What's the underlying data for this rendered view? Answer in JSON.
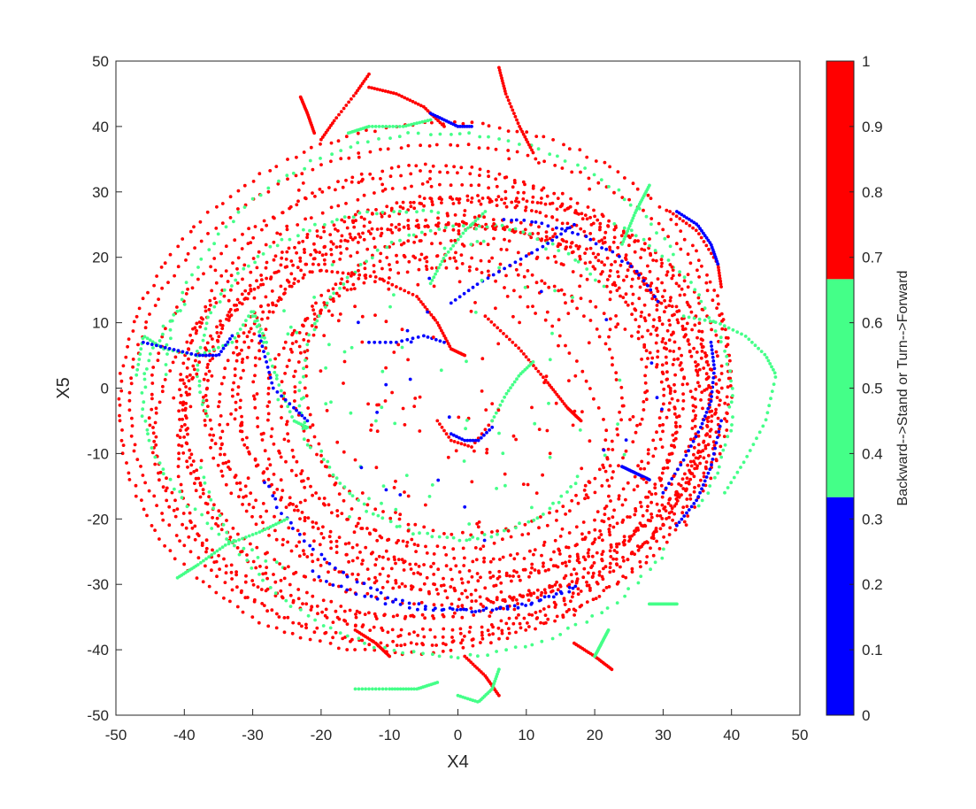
{
  "chart_data": {
    "type": "scatter",
    "title": "",
    "xlabel": "X4",
    "ylabel": "X5",
    "xlim": [
      -50,
      50
    ],
    "ylim": [
      -50,
      50
    ],
    "xticks": [
      -50,
      -40,
      -30,
      -20,
      -10,
      0,
      10,
      20,
      30,
      40,
      50
    ],
    "yticks": [
      -50,
      -40,
      -30,
      -20,
      -10,
      0,
      10,
      20,
      30,
      40,
      50
    ],
    "grid": false,
    "colorbar": {
      "label": "Backward-->Stand or Turn-->Forward",
      "lim": [
        0,
        1
      ],
      "ticks": [
        0,
        0.1,
        0.2,
        0.3,
        0.4,
        0.5,
        0.6,
        0.7,
        0.8,
        0.9,
        1
      ],
      "colormap": [
        {
          "from": 0,
          "to": 0.3333,
          "color": "#0000ff"
        },
        {
          "from": 0.3333,
          "to": 0.6667,
          "color": "#44ff88"
        },
        {
          "from": 0.6667,
          "to": 1,
          "color": "#ff0000"
        }
      ]
    },
    "classes": [
      {
        "value": 0,
        "color": "#0000ff"
      },
      {
        "value": 0.5,
        "color": "#44ff88"
      },
      {
        "value": 1,
        "color": "#ff0000"
      }
    ],
    "series": [
      {
        "value": 1,
        "kind": "ellipse",
        "cx": -4,
        "cy": -1,
        "rx": 44,
        "ry": 38,
        "tilt": 8,
        "start": 0,
        "end": 360,
        "n": 190
      },
      {
        "value": 1,
        "kind": "ellipse",
        "cx": -4,
        "cy": -2,
        "rx": 41,
        "ry": 35,
        "tilt": 5,
        "start": 0,
        "end": 360,
        "n": 180
      },
      {
        "value": 1,
        "kind": "ellipse",
        "cx": -3,
        "cy": -2,
        "rx": 38,
        "ry": 33,
        "tilt": 10,
        "start": 0,
        "end": 360,
        "n": 170
      },
      {
        "value": 1,
        "kind": "ellipse",
        "cx": -2,
        "cy": -1,
        "rx": 35,
        "ry": 30,
        "tilt": 6,
        "start": 0,
        "end": 360,
        "n": 160
      },
      {
        "value": 1,
        "kind": "ellipse",
        "cx": -2,
        "cy": -2,
        "rx": 33,
        "ry": 28,
        "tilt": 12,
        "start": 0,
        "end": 360,
        "n": 150
      },
      {
        "value": 1,
        "kind": "ellipse",
        "cx": -1,
        "cy": -1,
        "rx": 31,
        "ry": 26,
        "tilt": 4,
        "start": 0,
        "end": 360,
        "n": 140
      },
      {
        "value": 1,
        "kind": "ellipse",
        "cx": -3,
        "cy": -3,
        "rx": 42,
        "ry": 31,
        "tilt": 15,
        "start": 0,
        "end": 360,
        "n": 180
      },
      {
        "value": 1,
        "kind": "ellipse",
        "cx": 0,
        "cy": -2,
        "rx": 37,
        "ry": 27,
        "tilt": -5,
        "start": 0,
        "end": 360,
        "n": 160
      },
      {
        "value": 1,
        "kind": "ellipse",
        "cx": 1,
        "cy": -3,
        "rx": 34,
        "ry": 25,
        "tilt": -10,
        "start": 0,
        "end": 360,
        "n": 150
      },
      {
        "value": 1,
        "kind": "ellipse",
        "cx": 2,
        "cy": -4,
        "rx": 30,
        "ry": 22,
        "tilt": -8,
        "start": 0,
        "end": 360,
        "n": 130
      },
      {
        "value": 1,
        "kind": "ellipse",
        "cx": -5,
        "cy": 0,
        "rx": 45,
        "ry": 40,
        "tilt": 18,
        "start": 0,
        "end": 360,
        "n": 200
      },
      {
        "value": 1,
        "kind": "ellipse",
        "cx": -1,
        "cy": -4,
        "rx": 39,
        "ry": 29,
        "tilt": 2,
        "start": 0,
        "end": 360,
        "n": 170
      },
      {
        "value": 1,
        "kind": "ellipse",
        "cx": 1,
        "cy": 0,
        "rx": 27,
        "ry": 24,
        "tilt": 20,
        "start": 0,
        "end": 360,
        "n": 120
      },
      {
        "value": 1,
        "kind": "ellipse",
        "cx": 0,
        "cy": -1,
        "rx": 24,
        "ry": 21,
        "tilt": -15,
        "start": 0,
        "end": 360,
        "n": 110
      },
      {
        "value": 1,
        "kind": "ellipse",
        "cx": -4,
        "cy": -2,
        "rx": 36,
        "ry": 36,
        "tilt": 0,
        "start": 0,
        "end": 360,
        "n": 170
      },
      {
        "value": 1,
        "kind": "ellipse",
        "cx": -2,
        "cy": -5,
        "rx": 40,
        "ry": 33,
        "tilt": 25,
        "start": 0,
        "end": 360,
        "n": 175
      },
      {
        "value": 1,
        "kind": "ellipse",
        "cx": 0,
        "cy": -6,
        "rx": 20,
        "ry": 28,
        "tilt": 30,
        "start": 0,
        "end": 360,
        "n": 110
      },
      {
        "value": 1,
        "kind": "ellipse",
        "cx": 3,
        "cy": -2,
        "rx": 33,
        "ry": 30,
        "tilt": -20,
        "start": 0,
        "end": 360,
        "n": 150
      },
      {
        "value": 0.5,
        "kind": "ellipse",
        "cx": -3,
        "cy": 1,
        "rx": 40,
        "ry": 38,
        "tilt": 10,
        "start": 20,
        "end": 170,
        "n": 70
      },
      {
        "value": 0.5,
        "kind": "ellipse",
        "cx": -1,
        "cy": -6,
        "rx": 37,
        "ry": 35,
        "tilt": 0,
        "start": 190,
        "end": 330,
        "n": 65
      },
      {
        "value": 0.5,
        "kind": "ellipse",
        "cx": -2,
        "cy": -2,
        "rx": 44,
        "ry": 30,
        "tilt": 0,
        "start": 150,
        "end": 240,
        "n": 45
      },
      {
        "value": 0.5,
        "kind": "ellipse",
        "cx": 2,
        "cy": -1,
        "rx": 25,
        "ry": 26,
        "tilt": 0,
        "start": 40,
        "end": 200,
        "n": 60
      },
      {
        "value": 0.5,
        "kind": "ellipse",
        "cx": 0,
        "cy": -3,
        "rx": 21,
        "ry": 20,
        "tilt": 0,
        "start": 200,
        "end": 330,
        "n": 50
      },
      {
        "value": 0.5,
        "kind": "ellipse",
        "cx": -8,
        "cy": 3,
        "rx": 30,
        "ry": 24,
        "tilt": 0,
        "start": 80,
        "end": 200,
        "n": 55
      },
      {
        "value": 0.5,
        "kind": "ellipse",
        "cx": 4,
        "cy": -2,
        "rx": 36,
        "ry": 32,
        "tilt": 0,
        "start": -30,
        "end": 60,
        "n": 45
      },
      {
        "value": 0,
        "kind": "ellipse",
        "cx": 2,
        "cy": -4,
        "rx": 32,
        "ry": 30,
        "tilt": 0,
        "start": 200,
        "end": 300,
        "n": 50
      },
      {
        "value": 0,
        "kind": "ellipse",
        "cx": 6,
        "cy": 1,
        "rx": 27,
        "ry": 25,
        "tilt": 0,
        "start": 30,
        "end": 90,
        "n": 30
      },
      {
        "value": 0,
        "kind": "ellipse",
        "cx": 0,
        "cy": -2,
        "rx": 37,
        "ry": 32,
        "tilt": 0,
        "start": 235,
        "end": 300,
        "n": 35
      },
      {
        "value": 1,
        "kind": "path",
        "n": 50,
        "points": [
          [
            -20,
            18
          ],
          [
            -12,
            17
          ],
          [
            -6,
            14
          ],
          [
            -3,
            10
          ],
          [
            -1,
            6
          ],
          [
            1,
            5
          ]
        ]
      },
      {
        "value": 1,
        "kind": "path",
        "n": 45,
        "points": [
          [
            4,
            11
          ],
          [
            9,
            6
          ],
          [
            13,
            1
          ],
          [
            16,
            -3
          ],
          [
            18,
            -5
          ]
        ]
      },
      {
        "value": 1,
        "kind": "path",
        "n": 30,
        "points": [
          [
            6,
            49
          ],
          [
            7,
            45
          ],
          [
            9,
            40
          ],
          [
            11,
            36
          ]
        ]
      },
      {
        "value": 1,
        "kind": "path",
        "n": 30,
        "points": [
          [
            -13,
            46
          ],
          [
            -9,
            45
          ],
          [
            -5,
            43
          ],
          [
            -2,
            40
          ]
        ]
      },
      {
        "value": 1,
        "kind": "path",
        "n": 20,
        "points": [
          [
            -23,
            44.5
          ],
          [
            -22,
            42
          ],
          [
            -21,
            39
          ]
        ]
      },
      {
        "value": 1,
        "kind": "path",
        "n": 25,
        "points": [
          [
            31,
            27
          ],
          [
            35,
            24
          ],
          [
            38,
            19
          ],
          [
            38.5,
            15.5
          ]
        ]
      },
      {
        "value": 1,
        "kind": "path",
        "n": 25,
        "points": [
          [
            -13,
            48
          ],
          [
            -15,
            45
          ],
          [
            -18,
            41
          ],
          [
            -20,
            38
          ]
        ]
      },
      {
        "value": 1,
        "kind": "path",
        "n": 20,
        "points": [
          [
            22.5,
            -43
          ],
          [
            20,
            -41
          ],
          [
            17,
            -39
          ]
        ]
      },
      {
        "value": 1,
        "kind": "path",
        "n": 20,
        "points": [
          [
            6,
            -47
          ],
          [
            4,
            -44
          ],
          [
            1,
            -41
          ]
        ]
      },
      {
        "value": 1,
        "kind": "path",
        "n": 20,
        "points": [
          [
            -10,
            -41
          ],
          [
            -12,
            -39
          ],
          [
            -15,
            -37
          ]
        ]
      },
      {
        "value": 1,
        "kind": "path",
        "n": 18,
        "points": [
          [
            -3,
            -5
          ],
          [
            -1,
            -8
          ],
          [
            2,
            -9
          ],
          [
            5,
            -5
          ]
        ]
      },
      {
        "value": 0.5,
        "kind": "path",
        "n": 45,
        "points": [
          [
            -47,
            2
          ],
          [
            -46,
            8
          ],
          [
            -43,
            6
          ],
          [
            -38,
            5
          ],
          [
            -33,
            7
          ],
          [
            -30,
            12
          ],
          [
            -28,
            7
          ]
        ]
      },
      {
        "value": 0.5,
        "kind": "path",
        "n": 40,
        "points": [
          [
            -41,
            -29
          ],
          [
            -38,
            -27
          ],
          [
            -34,
            -24
          ],
          [
            -29,
            -22
          ],
          [
            -25,
            -20
          ]
        ]
      },
      {
        "value": 0.5,
        "kind": "path",
        "n": 45,
        "points": [
          [
            33,
            11
          ],
          [
            38,
            10
          ],
          [
            42,
            8
          ],
          [
            45,
            5
          ],
          [
            46.5,
            2
          ],
          [
            45,
            -5
          ],
          [
            42,
            -11
          ],
          [
            39,
            -16
          ]
        ]
      },
      {
        "value": 0.5,
        "kind": "path",
        "n": 30,
        "points": [
          [
            -4,
            41
          ],
          [
            -8,
            40
          ],
          [
            -13,
            40
          ],
          [
            -16,
            39
          ]
        ]
      },
      {
        "value": 0.5,
        "kind": "path",
        "n": 25,
        "points": [
          [
            24,
            22
          ],
          [
            26,
            27
          ],
          [
            28,
            31
          ]
        ]
      },
      {
        "value": 0.5,
        "kind": "path",
        "n": 30,
        "points": [
          [
            -15,
            -46
          ],
          [
            -10,
            -46
          ],
          [
            -6,
            -46
          ],
          [
            -3,
            -45
          ]
        ]
      },
      {
        "value": 0.5,
        "kind": "path",
        "n": 25,
        "points": [
          [
            0,
            -47
          ],
          [
            3,
            -48
          ],
          [
            5,
            -46
          ],
          [
            6,
            -43
          ]
        ]
      },
      {
        "value": 0.5,
        "kind": "path",
        "n": 20,
        "points": [
          [
            28,
            -33
          ],
          [
            30,
            -33
          ],
          [
            32,
            -33
          ]
        ]
      },
      {
        "value": 0.5,
        "kind": "path",
        "n": 20,
        "points": [
          [
            20,
            -41
          ],
          [
            21,
            -39
          ],
          [
            22,
            -37
          ]
        ]
      },
      {
        "value": 0.5,
        "kind": "path",
        "n": 25,
        "points": [
          [
            -30,
            11
          ],
          [
            -28,
            6
          ],
          [
            -26,
            0
          ],
          [
            -24,
            -5
          ],
          [
            -22,
            -6
          ]
        ]
      },
      {
        "value": 0.5,
        "kind": "path",
        "n": 25,
        "points": [
          [
            -4,
            16
          ],
          [
            -2,
            20
          ],
          [
            1,
            24
          ],
          [
            4,
            27
          ]
        ]
      },
      {
        "value": 0.5,
        "kind": "path",
        "n": 20,
        "points": [
          [
            5,
            -5
          ],
          [
            7,
            -1
          ],
          [
            9,
            2
          ],
          [
            11,
            4
          ]
        ]
      },
      {
        "value": 0,
        "kind": "path",
        "n": 35,
        "points": [
          [
            37,
            7
          ],
          [
            37.5,
            3
          ],
          [
            37,
            -2
          ],
          [
            35.5,
            -6
          ],
          [
            33,
            -11
          ],
          [
            30,
            -16
          ]
        ]
      },
      {
        "value": 0,
        "kind": "path",
        "n": 25,
        "points": [
          [
            32,
            27
          ],
          [
            35,
            25
          ],
          [
            37,
            22
          ],
          [
            38,
            19
          ]
        ]
      },
      {
        "value": 0,
        "kind": "path",
        "n": 25,
        "points": [
          [
            -46,
            7
          ],
          [
            -42,
            6
          ],
          [
            -38,
            5
          ],
          [
            -35,
            5
          ],
          [
            -33,
            8
          ]
        ]
      },
      {
        "value": 0,
        "kind": "path",
        "n": 20,
        "points": [
          [
            -29,
            8
          ],
          [
            -28,
            4
          ],
          [
            -27,
            0
          ],
          [
            -24,
            -3
          ],
          [
            -22,
            -5
          ]
        ]
      },
      {
        "value": 0,
        "kind": "path",
        "n": 25,
        "points": [
          [
            38.5,
            -5
          ],
          [
            37,
            -12
          ],
          [
            35,
            -17
          ],
          [
            32,
            -21
          ]
        ]
      },
      {
        "value": 0,
        "kind": "path",
        "n": 25,
        "points": [
          [
            -1,
            13
          ],
          [
            3,
            16
          ],
          [
            8,
            19
          ],
          [
            13,
            22
          ],
          [
            17,
            25
          ]
        ]
      },
      {
        "value": 0,
        "kind": "path",
        "n": 18,
        "points": [
          [
            -4,
            42
          ],
          [
            -2,
            41
          ],
          [
            0,
            40
          ],
          [
            2,
            40
          ]
        ]
      },
      {
        "value": 0,
        "kind": "path",
        "n": 18,
        "points": [
          [
            24,
            -12
          ],
          [
            26,
            -13
          ],
          [
            28,
            -14
          ]
        ]
      },
      {
        "value": 0,
        "kind": "path",
        "n": 15,
        "points": [
          [
            -13,
            7
          ],
          [
            -9,
            7
          ],
          [
            -5,
            8
          ],
          [
            -2,
            7
          ]
        ]
      },
      {
        "value": 0,
        "kind": "path",
        "n": 15,
        "points": [
          [
            -1,
            -7
          ],
          [
            1,
            -8
          ],
          [
            3,
            -8
          ],
          [
            5,
            -6
          ]
        ]
      }
    ],
    "scatter_points": [
      {
        "value": 1,
        "count": 320,
        "center": [
          -2,
          -1
        ],
        "rx": 42,
        "ry": 38
      },
      {
        "value": 0.5,
        "count": 70,
        "center": [
          0,
          0
        ],
        "rx": 30,
        "ry": 25
      },
      {
        "value": 0,
        "count": 22,
        "center": [
          5,
          -3
        ],
        "rx": 25,
        "ry": 22
      }
    ]
  }
}
